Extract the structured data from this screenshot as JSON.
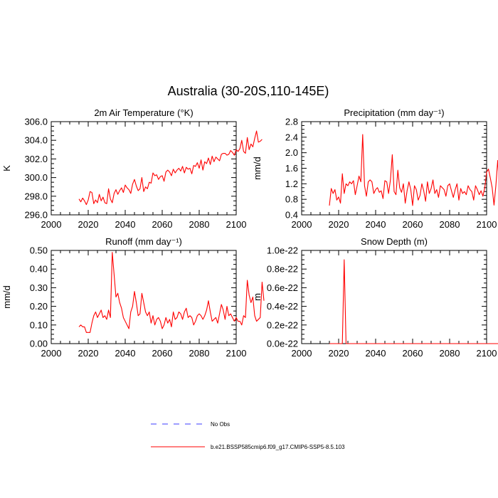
{
  "title": "Australia (30-20S,110-145E)",
  "colors": {
    "model": "#ff0000",
    "obs": "#3b3bff",
    "axes": "#000000"
  },
  "legend": {
    "placement": "bottom",
    "entries": [
      {
        "label": "No Obs",
        "style": "dashed",
        "color": "#3b3bff"
      },
      {
        "label": "b.e21.BSSP585cmip6.f09_g17.CMIP6-SSP5-8.5.103",
        "style": "solid",
        "color": "#ff0000"
      }
    ]
  },
  "chart_data": [
    {
      "type": "line",
      "title": "2m Air Temperature (°K)",
      "ylabel": "K",
      "xlim": [
        2000,
        2100
      ],
      "ylim": [
        296,
        306
      ],
      "xticks": [
        2000,
        2020,
        2040,
        2060,
        2080,
        2100
      ],
      "yticks": [
        296,
        298,
        300,
        302,
        304,
        306
      ],
      "yticklabels": [
        "296.0",
        "298.0",
        "300.0",
        "302.0",
        "304.0",
        "306.0"
      ],
      "grid": false,
      "x_start": 2015,
      "series": [
        {
          "values": [
            297.7,
            297.4,
            297.8,
            297.5,
            297.1,
            297.6,
            298.5,
            298.4,
            297.2,
            297.6,
            297.3,
            298.2,
            297.5,
            297.9,
            297.3,
            297.2,
            298.8,
            297.7,
            297.3,
            298.3,
            298.7,
            298.2,
            298.6,
            298.9,
            298.4,
            299.2,
            298.9,
            298.7,
            298.3,
            299.3,
            299.8,
            299.1,
            298.6,
            298.8,
            300.0,
            298.5,
            299.0,
            298.8,
            299.5,
            299.4,
            300.5,
            300.2,
            300.3,
            299.8,
            300.1,
            300.2,
            299.6,
            300.6,
            300.8,
            300.6,
            300.2,
            300.9,
            300.5,
            300.8,
            301.0,
            300.7,
            301.2,
            300.5,
            301.1,
            300.9,
            301.0,
            300.4,
            301.3,
            301.2,
            301.6,
            301.0,
            301.9,
            300.8,
            301.7,
            301.5,
            302.1,
            301.4,
            302.3,
            301.7,
            302.2,
            302.0,
            301.8,
            302.5,
            302.6,
            302.6,
            302.4,
            302.5,
            302.9,
            302.7,
            302.4,
            303.0,
            302.8,
            303.1,
            304.0,
            302.8,
            302.6,
            304.3,
            303.0,
            303.6,
            303.3,
            304.2,
            305.0,
            303.8,
            303.9,
            304.1
          ]
        }
      ]
    },
    {
      "type": "line",
      "title": "Precipitation (mm day⁻¹)",
      "ylabel": "mm/d",
      "xlim": [
        2000,
        2100
      ],
      "ylim": [
        0.4,
        2.8
      ],
      "xticks": [
        2000,
        2020,
        2040,
        2060,
        2080,
        2100
      ],
      "yticks": [
        0.4,
        0.8,
        1.2,
        1.6,
        2.0,
        2.4,
        2.8
      ],
      "yticklabels": [
        "0.4",
        "0.8",
        "1.2",
        "1.6",
        "2.0",
        "2.4",
        "2.8"
      ],
      "grid": false,
      "x_start": 2015,
      "series": [
        {
          "values": [
            0.64,
            1.08,
            0.95,
            1.05,
            0.78,
            0.86,
            0.7,
            1.46,
            0.95,
            1.2,
            1.15,
            1.25,
            1.2,
            1.28,
            0.92,
            1.15,
            1.4,
            1.25,
            2.47,
            1.15,
            0.88,
            1.25,
            1.3,
            1.25,
            0.95,
            1.05,
            1.1,
            0.98,
            1.02,
            0.82,
            1.28,
            1.25,
            0.95,
            1.3,
            1.95,
            1.0,
            0.92,
            1.55,
            1.1,
            0.98,
            1.2,
            0.7,
            1.02,
            1.25,
            1.05,
            0.64,
            1.15,
            1.05,
            0.78,
            0.9,
            1.2,
            1.02,
            0.75,
            1.25,
            0.95,
            1.08,
            1.3,
            0.95,
            1.05,
            0.85,
            1.15,
            1.1,
            1.05,
            0.88,
            1.15,
            1.2,
            1.02,
            0.85,
            1.05,
            1.2,
            0.78,
            1.08,
            0.95,
            1.0,
            0.92,
            1.15,
            1.05,
            1.0,
            0.78,
            1.15,
            1.05,
            0.92,
            1.02,
            0.88,
            1.1,
            1.5,
            1.58,
            1.35,
            1.1,
            0.65,
            1.15,
            1.8,
            1.05,
            0.8,
            0.95,
            0.88,
            0.72,
            0.45,
            0.82,
            0.7
          ]
        }
      ]
    },
    {
      "type": "line",
      "title": "Runoff (mm day⁻¹)",
      "ylabel": "mm/d",
      "xlim": [
        2000,
        2100
      ],
      "ylim": [
        0,
        0.5
      ],
      "xticks": [
        2000,
        2020,
        2040,
        2060,
        2080,
        2100
      ],
      "yticks": [
        0,
        0.1,
        0.2,
        0.3,
        0.4,
        0.5
      ],
      "yticklabels": [
        "0.00",
        "0.10",
        "0.20",
        "0.30",
        "0.40",
        "0.50"
      ],
      "grid": false,
      "x_start": 2015,
      "series": [
        {
          "values": [
            0.09,
            0.1,
            0.09,
            0.09,
            0.06,
            0.06,
            0.06,
            0.11,
            0.15,
            0.17,
            0.14,
            0.16,
            0.18,
            0.14,
            0.15,
            0.13,
            0.18,
            0.14,
            0.49,
            0.37,
            0.25,
            0.27,
            0.22,
            0.19,
            0.14,
            0.12,
            0.1,
            0.08,
            0.17,
            0.2,
            0.28,
            0.22,
            0.15,
            0.16,
            0.27,
            0.22,
            0.17,
            0.15,
            0.17,
            0.11,
            0.15,
            0.1,
            0.13,
            0.14,
            0.12,
            0.08,
            0.1,
            0.14,
            0.11,
            0.13,
            0.09,
            0.17,
            0.13,
            0.14,
            0.17,
            0.16,
            0.13,
            0.17,
            0.19,
            0.14,
            0.15,
            0.14,
            0.1,
            0.12,
            0.15,
            0.16,
            0.15,
            0.13,
            0.15,
            0.18,
            0.23,
            0.17,
            0.12,
            0.13,
            0.14,
            0.11,
            0.16,
            0.21,
            0.18,
            0.13,
            0.2,
            0.15,
            0.16,
            0.14,
            0.12,
            0.14,
            0.12,
            0.12,
            0.1,
            0.15,
            0.14,
            0.34,
            0.26,
            0.22,
            0.25,
            0.15,
            0.12,
            0.13,
            0.14,
            0.33,
            0.23
          ]
        }
      ]
    },
    {
      "type": "line",
      "title": "Snow Depth (m)",
      "ylabel": "m",
      "xlim": [
        2000,
        2100
      ],
      "ylim": [
        0,
        1e-22
      ],
      "xticks": [
        2000,
        2020,
        2040,
        2060,
        2080,
        2100
      ],
      "yticks": [
        0,
        2e-23,
        4e-23,
        6e-23,
        8e-23,
        1e-22
      ],
      "yticklabels": [
        "0.0e-22",
        "0.2e-22",
        "0.4e-22",
        "0.6e-22",
        "0.8e-22",
        "1.0e-22"
      ],
      "grid": false,
      "x_start": 2015,
      "series": [
        {
          "values": [
            0,
            0,
            0,
            0,
            0,
            0,
            0,
            0,
            9e-23,
            0,
            0,
            0,
            0,
            0,
            0,
            0,
            0,
            0,
            0,
            0,
            0,
            0,
            0,
            0,
            0,
            0,
            0,
            0,
            0,
            0,
            0,
            0,
            0,
            0,
            0,
            0,
            0,
            0,
            0,
            0,
            0,
            0,
            0,
            0,
            0,
            0,
            0,
            0,
            0,
            0,
            0,
            0,
            0,
            0,
            0,
            0,
            0,
            0,
            0,
            0,
            0,
            0,
            0,
            0,
            0,
            0,
            0,
            0,
            0,
            0,
            0,
            0,
            0,
            0,
            0,
            0,
            0,
            0,
            0,
            0,
            0,
            0,
            0,
            0,
            0,
            0,
            0,
            0,
            0,
            0,
            0,
            0,
            0,
            0,
            0,
            0,
            0,
            0,
            0,
            0,
            0,
            0
          ]
        }
      ]
    }
  ]
}
